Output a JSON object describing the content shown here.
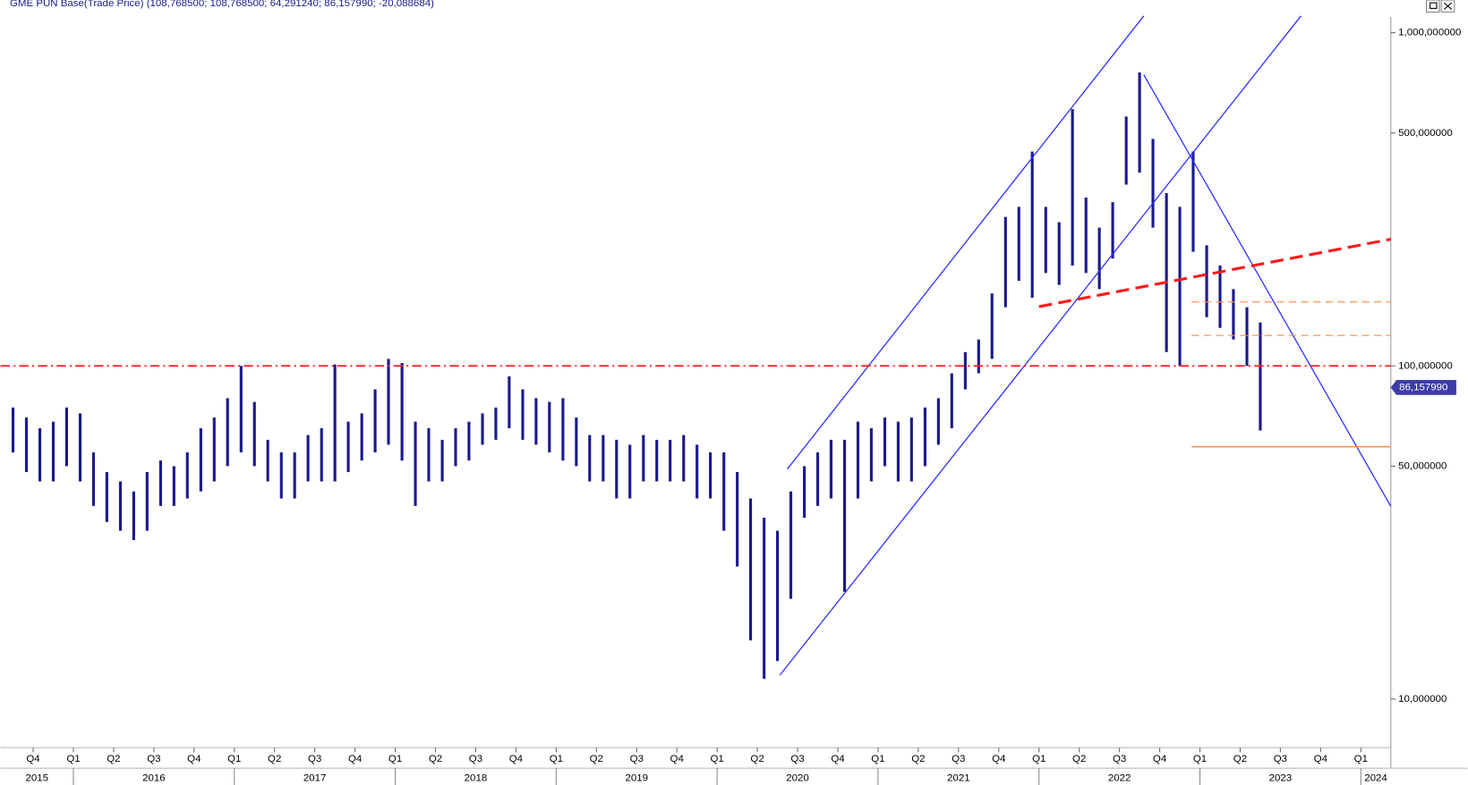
{
  "chart_data": {
    "type": "range",
    "title": "GME PUN Base(Trade Price) (108,768500; 108,768500; 64,291240; 86,157990; -20,088684)",
    "log_scale": true,
    "bar_color": "#1a1a8c",
    "xlim": [
      2015.547,
      2024.186
    ],
    "ylim": [
      7.15,
      1116
    ],
    "yticks": [
      {
        "value": 1000,
        "label": "1,000,000000"
      },
      {
        "value": 500,
        "label": "500,000000"
      },
      {
        "value": 100,
        "label": "100,000000"
      },
      {
        "value": 50,
        "label": "50,000000"
      },
      {
        "value": 10,
        "label": "10,000000"
      }
    ],
    "xticks": [
      {
        "value": 2015.75,
        "label": "Q4"
      },
      {
        "value": 2016.0,
        "label": "Q1"
      },
      {
        "value": 2016.25,
        "label": "Q2"
      },
      {
        "value": 2016.5,
        "label": "Q3"
      },
      {
        "value": 2016.75,
        "label": "Q4"
      },
      {
        "value": 2017.0,
        "label": "Q1"
      },
      {
        "value": 2017.25,
        "label": "Q2"
      },
      {
        "value": 2017.5,
        "label": "Q3"
      },
      {
        "value": 2017.75,
        "label": "Q4"
      },
      {
        "value": 2018.0,
        "label": "Q1"
      },
      {
        "value": 2018.25,
        "label": "Q2"
      },
      {
        "value": 2018.5,
        "label": "Q3"
      },
      {
        "value": 2018.75,
        "label": "Q4"
      },
      {
        "value": 2019.0,
        "label": "Q1"
      },
      {
        "value": 2019.25,
        "label": "Q2"
      },
      {
        "value": 2019.5,
        "label": "Q3"
      },
      {
        "value": 2019.75,
        "label": "Q4"
      },
      {
        "value": 2020.0,
        "label": "Q1"
      },
      {
        "value": 2020.25,
        "label": "Q2"
      },
      {
        "value": 2020.5,
        "label": "Q3"
      },
      {
        "value": 2020.75,
        "label": "Q4"
      },
      {
        "value": 2021.0,
        "label": "Q1"
      },
      {
        "value": 2021.25,
        "label": "Q2"
      },
      {
        "value": 2021.5,
        "label": "Q3"
      },
      {
        "value": 2021.75,
        "label": "Q4"
      },
      {
        "value": 2022.0,
        "label": "Q1"
      },
      {
        "value": 2022.25,
        "label": "Q2"
      },
      {
        "value": 2022.5,
        "label": "Q3"
      },
      {
        "value": 2022.75,
        "label": "Q4"
      },
      {
        "value": 2023.0,
        "label": "Q1"
      },
      {
        "value": 2023.25,
        "label": "Q2"
      },
      {
        "value": 2023.5,
        "label": "Q3"
      },
      {
        "value": 2023.75,
        "label": "Q4"
      },
      {
        "value": 2024.0,
        "label": "Q1"
      }
    ],
    "years": [
      2015,
      2016,
      2017,
      2018,
      2019,
      2020,
      2021,
      2022,
      2023,
      2024
    ],
    "x": [
      2015.625,
      2015.708,
      2015.792,
      2015.875,
      2015.958,
      2016.042,
      2016.125,
      2016.208,
      2016.292,
      2016.375,
      2016.458,
      2016.542,
      2016.625,
      2016.708,
      2016.792,
      2016.875,
      2016.958,
      2017.042,
      2017.125,
      2017.208,
      2017.292,
      2017.375,
      2017.458,
      2017.542,
      2017.625,
      2017.708,
      2017.792,
      2017.875,
      2017.958,
      2018.042,
      2018.125,
      2018.208,
      2018.292,
      2018.375,
      2018.458,
      2018.542,
      2018.625,
      2018.708,
      2018.792,
      2018.875,
      2018.958,
      2019.042,
      2019.125,
      2019.208,
      2019.292,
      2019.375,
      2019.458,
      2019.542,
      2019.625,
      2019.708,
      2019.792,
      2019.875,
      2019.958,
      2020.042,
      2020.125,
      2020.208,
      2020.292,
      2020.375,
      2020.458,
      2020.542,
      2020.625,
      2020.708,
      2020.792,
      2020.875,
      2020.958,
      2021.042,
      2021.125,
      2021.208,
      2021.292,
      2021.375,
      2021.458,
      2021.542,
      2021.625,
      2021.708,
      2021.792,
      2021.875,
      2021.958,
      2022.042,
      2022.125,
      2022.208,
      2022.292,
      2022.375,
      2022.458,
      2022.542,
      2022.625,
      2022.708,
      2022.792,
      2022.875,
      2022.958,
      2023.042,
      2023.125,
      2023.208,
      2023.292,
      2023.375
    ],
    "high": [
      75,
      70,
      65,
      68,
      75,
      72,
      55,
      48,
      45,
      42,
      48,
      52,
      50,
      55,
      65,
      70,
      80,
      100,
      78,
      60,
      55,
      55,
      62,
      65,
      101,
      68,
      72,
      85,
      105,
      102,
      68,
      65,
      60,
      65,
      68,
      72,
      75,
      93,
      85,
      80,
      78,
      80,
      70,
      62,
      62,
      60,
      58,
      62,
      60,
      60,
      62,
      58,
      55,
      55,
      48,
      40,
      35,
      32,
      42,
      50,
      55,
      60,
      60,
      68,
      65,
      70,
      68,
      70,
      75,
      80,
      95,
      110,
      120,
      165,
      280,
      300,
      440,
      300,
      270,
      590,
      320,
      260,
      310,
      560,
      760,
      480,
      330,
      300,
      440,
      230,
      200,
      170,
      150,
      135
    ],
    "low": [
      55,
      48,
      45,
      45,
      50,
      45,
      38,
      34,
      32,
      30,
      32,
      38,
      38,
      40,
      42,
      45,
      50,
      55,
      50,
      45,
      40,
      40,
      45,
      45,
      45,
      48,
      52,
      55,
      58,
      52,
      38,
      45,
      45,
      50,
      52,
      58,
      60,
      65,
      60,
      58,
      55,
      52,
      50,
      45,
      45,
      40,
      40,
      45,
      45,
      45,
      45,
      40,
      40,
      32,
      25,
      15,
      11.5,
      13,
      20,
      35,
      38,
      40,
      21,
      40,
      45,
      50,
      45,
      45,
      50,
      58,
      65,
      85,
      95,
      105,
      150,
      180,
      160,
      190,
      175,
      200,
      190,
      170,
      210,
      350,
      380,
      260,
      110,
      100,
      220,
      140,
      130,
      120,
      100,
      64
    ],
    "last_price": {
      "value": 86.15799,
      "label": "86,157990"
    },
    "lines": [
      {
        "color": "#2a2aff",
        "width": 1.2,
        "dash": "none",
        "x": [
          2020.436,
          2022.651
        ],
        "y": [
          49,
          1123
        ]
      },
      {
        "color": "#2a2aff",
        "width": 1.2,
        "dash": "none",
        "x": [
          2020.39,
          2023.628
        ],
        "y": [
          11.8,
          1123
        ]
      },
      {
        "color": "#2a2aff",
        "width": 1.2,
        "dash": "none",
        "x": [
          2022.651,
          2024.186
        ],
        "y": [
          748,
          37.9
        ]
      },
      {
        "color": "#ff1a1a",
        "width": 3,
        "dash": "14 7",
        "x": [
          2022.0,
          2024.186
        ],
        "y": [
          150.6,
          240
        ]
      },
      {
        "color": "#ff1a1a",
        "width": 1.6,
        "dash": "10 4 2 4",
        "x": [
          2015.547,
          2024.186
        ],
        "y": [
          100,
          100
        ]
      },
      {
        "color": "#ff8c42",
        "width": 1,
        "dash": "8 5",
        "x": [
          2022.948,
          2024.186
        ],
        "y": [
          155.6,
          155.6
        ]
      },
      {
        "color": "#ff8c42",
        "width": 1,
        "dash": "8 5",
        "x": [
          2022.948,
          2024.186
        ],
        "y": [
          123.4,
          123.4
        ]
      },
      {
        "color": "#ff8c42",
        "width": 1.4,
        "dash": "none",
        "x": [
          2022.948,
          2024.186
        ],
        "y": [
          57.2,
          57.2
        ]
      }
    ]
  }
}
